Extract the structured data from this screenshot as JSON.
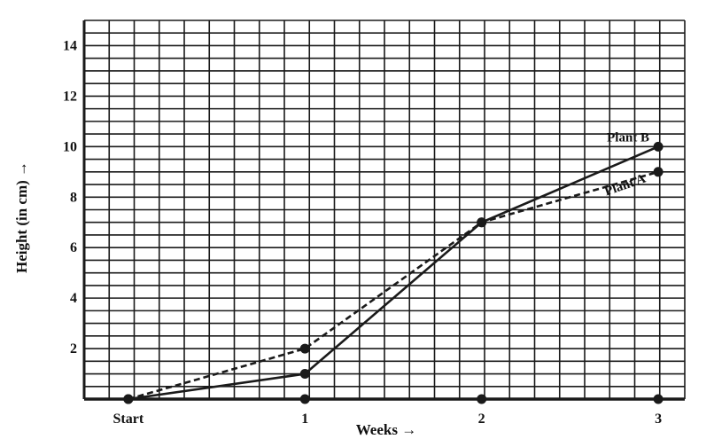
{
  "chart_data": {
    "type": "line",
    "title": "",
    "xlabel": "Weeks →",
    "ylabel": "Height (in cm) →",
    "x_categories": [
      "Start",
      "1",
      "2",
      "3"
    ],
    "x": [
      0,
      1,
      2,
      3
    ],
    "xlim": [
      -0.25,
      3.15
    ],
    "ylim": [
      0,
      15
    ],
    "yticks": [
      2,
      4,
      6,
      8,
      10,
      12,
      14
    ],
    "grid": true,
    "series": [
      {
        "name": "Plant A",
        "style": "dashed",
        "values": [
          0,
          2,
          7,
          9
        ]
      },
      {
        "name": "Plant B",
        "style": "solid",
        "values": [
          0,
          1,
          7,
          10
        ]
      }
    ]
  },
  "colors": {
    "line": "#1a1a1a",
    "grid": "#1a1a1a",
    "background": "#ffffff"
  }
}
